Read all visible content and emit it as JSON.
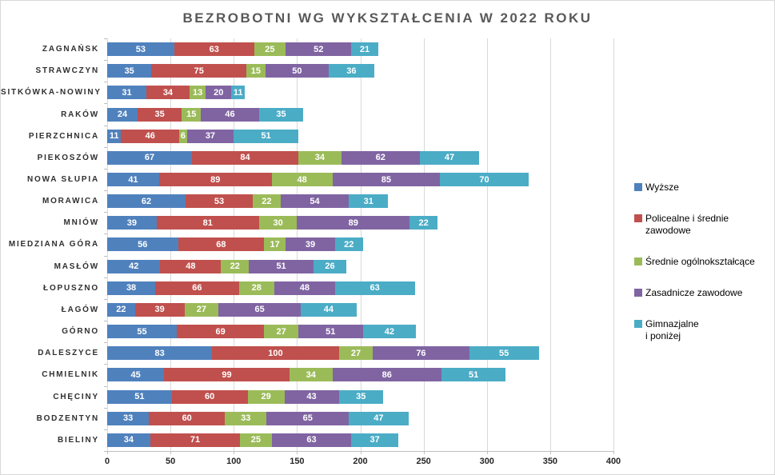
{
  "chart_data": {
    "type": "bar",
    "stacked": true,
    "orientation": "horizontal",
    "title": "BEZROBOTNI WG WYKSZTAŁCENIA W 2022 ROKU",
    "grid": true,
    "legend_position": "right",
    "value_labels_color": "#ffffff",
    "xlim": [
      0,
      400
    ],
    "xticks": [
      0,
      50,
      100,
      150,
      200,
      250,
      300,
      350,
      400
    ],
    "categories": [
      "ZAGNAŃSK",
      "STRAWCZYN",
      "SITKÓWKA-NOWINY",
      "RAKÓW",
      "PIERZCHNICA",
      "PIEKOSZÓW",
      "NOWA SŁUPIA",
      "MORAWICA",
      "MNIÓW",
      "MIEDZIANA GÓRA",
      "MASŁÓW",
      "ŁOPUSZNO",
      "ŁAGÓW",
      "GÓRNO",
      "DALESZYCE",
      "CHMIELNIK",
      "CHĘCINY",
      "BODZENTYN",
      "BIELINY"
    ],
    "series": [
      {
        "name": "Wyższe",
        "legend_lines": [
          "Wyższe"
        ],
        "color": "#4F81BD",
        "values": [
          53,
          35,
          31,
          24,
          11,
          67,
          41,
          62,
          39,
          56,
          42,
          38,
          22,
          55,
          83,
          45,
          51,
          33,
          34
        ]
      },
      {
        "name": "Policealne i średnie zawodowe",
        "legend_lines": [
          "Policealne i średnie zawodowe"
        ],
        "color": "#C0504D",
        "values": [
          63,
          75,
          34,
          35,
          46,
          84,
          89,
          53,
          81,
          68,
          48,
          66,
          39,
          69,
          100,
          99,
          60,
          60,
          71
        ]
      },
      {
        "name": "Średnie ogólnokształcące",
        "legend_lines": [
          "Średnie ogólnokształcące"
        ],
        "color": "#9BBB59",
        "values": [
          25,
          15,
          13,
          15,
          6,
          34,
          48,
          22,
          30,
          17,
          22,
          28,
          27,
          27,
          27,
          34,
          29,
          33,
          25
        ]
      },
      {
        "name": "Zasadnicze zawodowe",
        "legend_lines": [
          "Zasadnicze zawodowe"
        ],
        "color": "#8064A2",
        "values": [
          52,
          50,
          20,
          46,
          37,
          62,
          85,
          54,
          89,
          39,
          51,
          48,
          65,
          51,
          76,
          86,
          43,
          65,
          63
        ]
      },
      {
        "name": "Gimnazjalne i poniżej",
        "legend_lines": [
          "Gimnazjalne",
          "i poniżej"
        ],
        "color": "#4BACC6",
        "values": [
          21,
          36,
          11,
          35,
          51,
          47,
          70,
          31,
          22,
          22,
          26,
          63,
          44,
          42,
          55,
          51,
          35,
          47,
          37
        ]
      }
    ]
  }
}
